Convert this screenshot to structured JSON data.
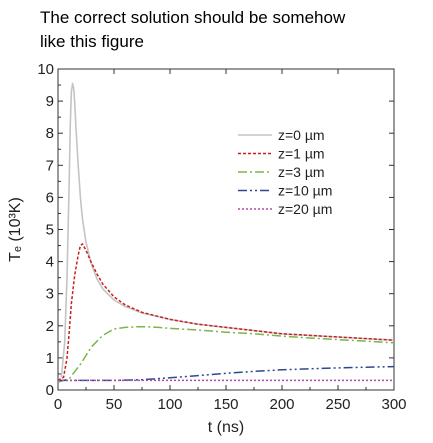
{
  "caption": {
    "line1": "The correct solution should be somehow",
    "line2": "like this figure"
  },
  "chart_data": {
    "type": "line",
    "xlabel": "t (ns)",
    "ylabel": "Tₑ (10³K)",
    "xlim": [
      0,
      300
    ],
    "ylim": [
      0,
      10
    ],
    "xticks": [
      0,
      50,
      100,
      150,
      200,
      250,
      300
    ],
    "yticks": [
      0,
      1,
      2,
      3,
      4,
      5,
      6,
      7,
      8,
      9,
      10
    ],
    "grid": false,
    "legend_position": "upper-right",
    "series": [
      {
        "name": "z=0 µm",
        "color": "#c4c4c4",
        "dash": "solid",
        "x": [
          3,
          6,
          8,
          10,
          11,
          12,
          13,
          14,
          15,
          16,
          18,
          20,
          22,
          25,
          30,
          35,
          40,
          50,
          60,
          75,
          100,
          125,
          150,
          175,
          200,
          225,
          250,
          275,
          300
        ],
        "y": [
          0.4,
          1.5,
          3.5,
          6.5,
          8.3,
          9.3,
          9.55,
          9.4,
          8.9,
          8.2,
          7.0,
          6.0,
          5.3,
          4.6,
          3.9,
          3.45,
          3.15,
          2.8,
          2.6,
          2.4,
          2.2,
          2.05,
          1.95,
          1.85,
          1.75,
          1.7,
          1.65,
          1.6,
          1.55
        ]
      },
      {
        "name": "z=1 µm",
        "color": "#c81e1e",
        "dash": "3,2",
        "x": [
          0,
          5,
          8,
          10,
          12,
          15,
          18,
          20,
          22,
          25,
          30,
          35,
          40,
          50,
          60,
          75,
          100,
          125,
          150,
          175,
          200,
          225,
          250,
          275,
          300
        ],
        "y": [
          0.3,
          0.4,
          1.0,
          1.8,
          2.7,
          3.6,
          4.2,
          4.5,
          4.55,
          4.35,
          3.95,
          3.6,
          3.3,
          2.9,
          2.65,
          2.42,
          2.2,
          2.05,
          1.95,
          1.85,
          1.75,
          1.7,
          1.65,
          1.6,
          1.55
        ]
      },
      {
        "name": "z=3 µm",
        "color": "#7ab648",
        "dash": "9,3,2,3",
        "x": [
          0,
          10,
          20,
          30,
          40,
          50,
          60,
          70,
          80,
          90,
          100,
          125,
          150,
          175,
          200,
          225,
          250,
          275,
          300
        ],
        "y": [
          0.25,
          0.35,
          0.8,
          1.35,
          1.7,
          1.9,
          1.95,
          1.97,
          1.97,
          1.95,
          1.92,
          1.87,
          1.8,
          1.75,
          1.68,
          1.62,
          1.57,
          1.52,
          1.47
        ]
      },
      {
        "name": "z=10 µm",
        "color": "#2e4a8a",
        "dash": "9,3,2,3,2,3",
        "x": [
          0,
          25,
          50,
          75,
          100,
          125,
          150,
          175,
          200,
          225,
          250,
          275,
          300
        ],
        "y": [
          0.3,
          0.3,
          0.3,
          0.32,
          0.38,
          0.45,
          0.52,
          0.58,
          0.63,
          0.66,
          0.69,
          0.71,
          0.73
        ]
      },
      {
        "name": "z=20 µm",
        "color": "#b24aa8",
        "dash": "2,2",
        "x": [
          0,
          50,
          100,
          150,
          200,
          250,
          300
        ],
        "y": [
          0.3,
          0.3,
          0.3,
          0.3,
          0.3,
          0.3,
          0.3
        ]
      }
    ]
  }
}
